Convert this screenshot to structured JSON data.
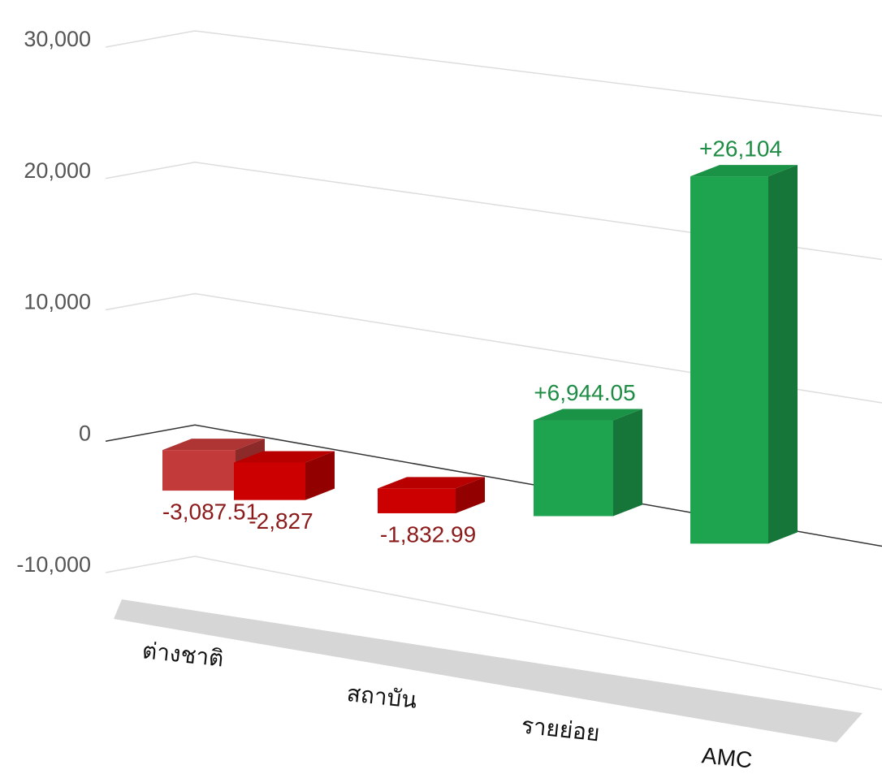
{
  "chart_data": {
    "type": "bar3d",
    "categories": [
      "ต่างชาติ",
      null,
      "สถาบัน",
      "รายย่อย",
      "AMC"
    ],
    "values": [
      -3087.51,
      -2827,
      -1832.99,
      6944.05,
      26104
    ],
    "value_labels": [
      "-3,087.51",
      "-2,827",
      "-1,832.99",
      "+6,944.05",
      "+26,104"
    ],
    "colors": [
      "#c23a3a",
      "#cc0000",
      "#cc0000",
      "#1ea34e",
      "#1ea34e"
    ],
    "ylim": [
      -10000,
      30000
    ],
    "yticks": [
      {
        "value": -10000,
        "label": "-10,000"
      },
      0,
      {
        "value": 10000,
        "label": "10,000"
      },
      {
        "value": 20000,
        "label": "20,000"
      },
      {
        "value": 30000,
        "label": "30,000"
      }
    ],
    "grid": true
  }
}
